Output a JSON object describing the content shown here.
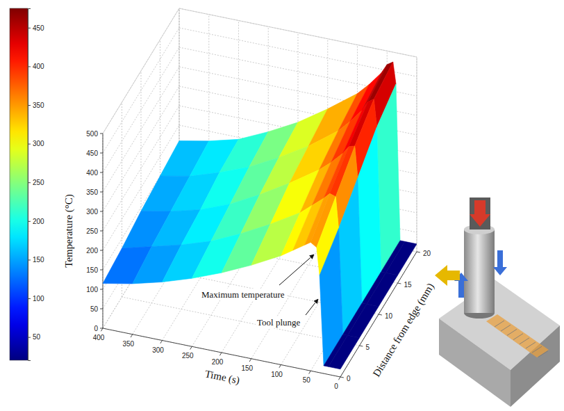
{
  "chart_data": {
    "type": "surface",
    "x_label": "Time (s)",
    "y_label": "Distance from edge (mm)",
    "z_label": "Temperature (°C)",
    "x": [
      0,
      20,
      28,
      35,
      40,
      50,
      60,
      80,
      100,
      150,
      200,
      250,
      300,
      350,
      400
    ],
    "y": [
      0,
      5,
      10,
      15,
      20
    ],
    "z": [
      [
        20,
        20,
        20,
        250,
        320,
        330,
        320,
        300,
        280,
        240,
        205,
        175,
        150,
        130,
        115
      ],
      [
        20,
        20,
        20,
        290,
        370,
        375,
        360,
        335,
        310,
        265,
        225,
        190,
        165,
        145,
        125
      ],
      [
        20,
        20,
        20,
        340,
        420,
        415,
        395,
        365,
        340,
        290,
        245,
        205,
        175,
        155,
        140
      ],
      [
        20,
        20,
        20,
        390,
        460,
        450,
        425,
        390,
        360,
        305,
        260,
        220,
        190,
        165,
        150
      ],
      [
        20,
        20,
        20,
        420,
        475,
        465,
        440,
        405,
        375,
        320,
        270,
        230,
        195,
        175,
        160
      ]
    ],
    "xlim": [
      0,
      400
    ],
    "ylim": [
      0,
      20
    ],
    "zlim": [
      0,
      500
    ],
    "xticks": [
      0,
      50,
      100,
      150,
      200,
      250,
      300,
      350,
      400
    ],
    "yticks": [
      0,
      5,
      10,
      15,
      20
    ],
    "zticks": [
      0,
      50,
      100,
      150,
      200,
      250,
      300,
      350,
      400,
      450,
      500
    ],
    "grid": true,
    "colorbar": {
      "range": [
        20,
        475
      ],
      "ticks": [
        50,
        100,
        150,
        200,
        250,
        300,
        350,
        400,
        450
      ]
    },
    "annotations": [
      {
        "text": "Maximum temperature"
      },
      {
        "text": "Tool plunge"
      }
    ]
  }
}
